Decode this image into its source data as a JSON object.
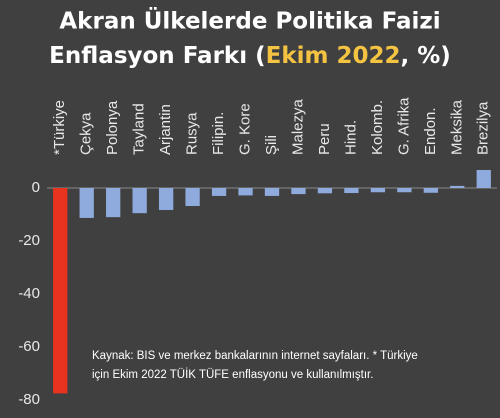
{
  "chart_data": {
    "type": "bar",
    "title": [
      "Akran Ülkelerde Politika Faizi",
      "Enflasyon Farkı (",
      "Ekim 2022",
      ", %)"
    ],
    "categories": [
      "*Türkiye",
      "Çekya",
      "Polonya",
      "Tayland",
      "Arjantin",
      "Rusya",
      "Filipin.",
      "G. Kore",
      "Şili",
      "Malezya",
      "Peru",
      "Hind.",
      "Kolomb.",
      "G. Afrika",
      "Endon.",
      "Meksika",
      "Brezilya"
    ],
    "values": [
      -77.5,
      -11.3,
      -11,
      -9.5,
      -8.3,
      -6.8,
      -3,
      -2.8,
      -3,
      -2.3,
      -2,
      -1.9,
      -1.6,
      -1.6,
      -1.8,
      0.8,
      6.8
    ],
    "colors": [
      "#e8331f",
      "#8faadc",
      "#8faadc",
      "#8faadc",
      "#8faadc",
      "#8faadc",
      "#8faadc",
      "#8faadc",
      "#8faadc",
      "#8faadc",
      "#8faadc",
      "#8faadc",
      "#8faadc",
      "#8faadc",
      "#8faadc",
      "#8faadc",
      "#8faadc"
    ],
    "ylim": [
      -80,
      10
    ],
    "yticks": [
      0,
      -20,
      -40,
      -60,
      -80
    ],
    "grid": false,
    "note": [
      "Kaynak: BIS ve merkez bankalarının internet sayfaları. * Türkiye",
      "için Ekim 2022 TÜİK TÜFE enflasyonu ve kullanılmıştır."
    ]
  }
}
